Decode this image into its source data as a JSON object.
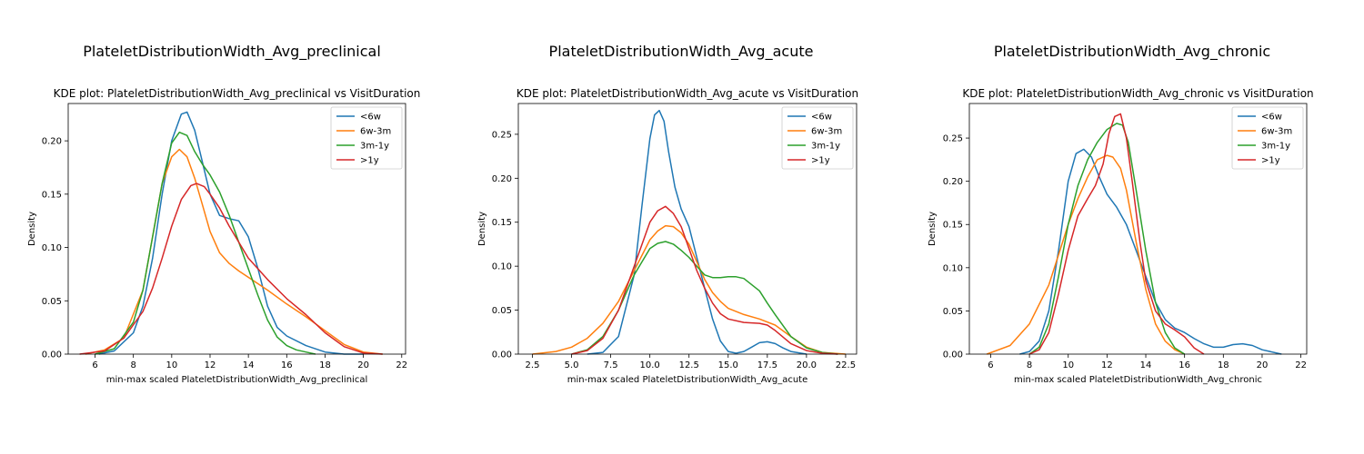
{
  "colors": {
    "lt6w": "#1f77b4",
    "6w3m": "#ff7f0e",
    "3m1y": "#2ca02c",
    "gt1y": "#d62728"
  },
  "chart_data": [
    {
      "type": "line",
      "panel_title": "PlateletDistributionWidth_Avg_preclinical",
      "title": "KDE plot:  PlateletDistributionWidth_Avg_preclinical vs VisitDuration",
      "xlabel": "min-max scaled PlateletDistributionWidth_Avg_preclinical",
      "ylabel": "Density",
      "xlim": [
        4.6,
        22.2
      ],
      "ylim": [
        0,
        0.235
      ],
      "xticks": [
        6,
        8,
        10,
        12,
        14,
        16,
        18,
        20,
        22
      ],
      "yticks": [
        0.0,
        0.05,
        0.1,
        0.15,
        0.2
      ],
      "ytick_labels": [
        "0.00",
        "0.05",
        "0.10",
        "0.15",
        "0.20"
      ],
      "legend_position": "top-right",
      "grid": false,
      "series": [
        {
          "name": "<6w",
          "color_key": "lt6w",
          "x": [
            6.2,
            7,
            8,
            8.5,
            9,
            9.5,
            10,
            10.5,
            10.8,
            11.2,
            11.6,
            12,
            12.5,
            13,
            13.5,
            14,
            14.5,
            15,
            15.5,
            16,
            17,
            18,
            19,
            20
          ],
          "y": [
            0,
            0.003,
            0.02,
            0.045,
            0.09,
            0.15,
            0.2,
            0.225,
            0.227,
            0.21,
            0.18,
            0.15,
            0.13,
            0.127,
            0.125,
            0.11,
            0.08,
            0.045,
            0.025,
            0.017,
            0.008,
            0.002,
            0,
            0
          ]
        },
        {
          "name": "6w-3m",
          "color_key": "6w3m",
          "x": [
            5.5,
            6.5,
            7.5,
            8.5,
            9,
            9.5,
            10,
            10.4,
            10.8,
            11.2,
            11.6,
            12,
            12.5,
            13,
            13.5,
            14,
            15,
            16,
            17,
            18,
            19,
            20,
            21
          ],
          "y": [
            0,
            0.004,
            0.015,
            0.06,
            0.11,
            0.16,
            0.185,
            0.192,
            0.185,
            0.165,
            0.14,
            0.115,
            0.095,
            0.085,
            0.078,
            0.072,
            0.06,
            0.047,
            0.035,
            0.022,
            0.009,
            0.002,
            0
          ]
        },
        {
          "name": "3m-1y",
          "color_key": "3m1y",
          "x": [
            6,
            7,
            8,
            8.5,
            9,
            9.5,
            10,
            10.4,
            10.8,
            11.2,
            11.6,
            12,
            12.5,
            13,
            13.5,
            14,
            14.5,
            15,
            15.5,
            16,
            16.5,
            17,
            17.5
          ],
          "y": [
            0,
            0.005,
            0.03,
            0.06,
            0.11,
            0.16,
            0.198,
            0.208,
            0.205,
            0.19,
            0.178,
            0.168,
            0.152,
            0.13,
            0.105,
            0.08,
            0.055,
            0.032,
            0.016,
            0.008,
            0.004,
            0.002,
            0
          ]
        },
        {
          "name": ">1y",
          "color_key": "gt1y",
          "x": [
            5.2,
            6.5,
            7.5,
            8.5,
            9,
            9.5,
            10,
            10.5,
            11,
            11.3,
            11.7,
            12,
            12.5,
            13,
            13.5,
            14,
            15,
            16,
            17,
            18,
            19,
            20,
            21
          ],
          "y": [
            0,
            0.003,
            0.015,
            0.04,
            0.062,
            0.09,
            0.12,
            0.145,
            0.158,
            0.16,
            0.157,
            0.15,
            0.137,
            0.12,
            0.105,
            0.09,
            0.07,
            0.052,
            0.037,
            0.02,
            0.007,
            0.001,
            0
          ]
        }
      ]
    },
    {
      "type": "line",
      "panel_title": "PlateletDistributionWidth_Avg_acute",
      "title": "KDE plot:  PlateletDistributionWidth_Avg_acute vs VisitDuration",
      "xlabel": "min-max scaled PlateletDistributionWidth_Avg_acute",
      "ylabel": "Density",
      "xlim": [
        1.6,
        23.2
      ],
      "ylim": [
        0,
        0.285
      ],
      "xticks": [
        2.5,
        5.0,
        7.5,
        10.0,
        12.5,
        15.0,
        17.5,
        20.0,
        22.5
      ],
      "xtick_labels": [
        "2.5",
        "5.0",
        "7.5",
        "10.0",
        "12.5",
        "15.0",
        "17.5",
        "20.0",
        "22.5"
      ],
      "yticks": [
        0.0,
        0.05,
        0.1,
        0.15,
        0.2,
        0.25
      ],
      "ytick_labels": [
        "0.00",
        "0.05",
        "0.10",
        "0.15",
        "0.20",
        "0.25"
      ],
      "legend_position": "top-right",
      "grid": false,
      "series": [
        {
          "name": "<6w",
          "color_key": "lt6w",
          "x": [
            6,
            7,
            8,
            9,
            9.5,
            10,
            10.3,
            10.6,
            10.9,
            11.2,
            11.6,
            12,
            12.5,
            13,
            13.5,
            14,
            14.5,
            15,
            15.5,
            16,
            16.5,
            17,
            17.5,
            18,
            18.5,
            19,
            20
          ],
          "y": [
            0,
            0.002,
            0.02,
            0.09,
            0.17,
            0.245,
            0.272,
            0.277,
            0.265,
            0.23,
            0.19,
            0.165,
            0.145,
            0.11,
            0.075,
            0.04,
            0.015,
            0.003,
            0.001,
            0.003,
            0.008,
            0.013,
            0.014,
            0.012,
            0.007,
            0.003,
            0
          ]
        },
        {
          "name": "6w-3m",
          "color_key": "6w3m",
          "x": [
            2.5,
            4,
            5,
            6,
            7,
            8,
            9,
            10,
            10.5,
            11,
            11.5,
            12,
            12.5,
            13,
            13.5,
            14,
            14.5,
            15,
            16,
            17,
            18,
            19,
            20,
            21,
            22.5
          ],
          "y": [
            0,
            0.003,
            0.008,
            0.018,
            0.035,
            0.06,
            0.095,
            0.13,
            0.14,
            0.146,
            0.145,
            0.138,
            0.125,
            0.105,
            0.085,
            0.07,
            0.06,
            0.052,
            0.045,
            0.04,
            0.033,
            0.02,
            0.008,
            0.002,
            0
          ]
        },
        {
          "name": "3m-1y",
          "color_key": "3m1y",
          "x": [
            5,
            6,
            7,
            8,
            9,
            10,
            10.5,
            11,
            11.5,
            12,
            12.5,
            13,
            13.5,
            14,
            14.5,
            15,
            15.5,
            16,
            17,
            17.5,
            18,
            19,
            20,
            21,
            22
          ],
          "y": [
            0,
            0.005,
            0.02,
            0.05,
            0.09,
            0.12,
            0.126,
            0.128,
            0.125,
            0.118,
            0.11,
            0.1,
            0.09,
            0.087,
            0.087,
            0.088,
            0.088,
            0.086,
            0.072,
            0.058,
            0.045,
            0.02,
            0.007,
            0.002,
            0
          ]
        },
        {
          "name": ">1y",
          "color_key": "gt1y",
          "x": [
            5,
            6,
            7,
            8,
            9,
            10,
            10.5,
            11,
            11.5,
            12,
            12.5,
            13,
            13.5,
            14,
            14.5,
            15,
            16,
            17,
            17.5,
            18,
            19,
            20,
            21,
            22
          ],
          "y": [
            0,
            0.004,
            0.018,
            0.05,
            0.1,
            0.15,
            0.163,
            0.168,
            0.16,
            0.145,
            0.12,
            0.095,
            0.075,
            0.058,
            0.046,
            0.04,
            0.036,
            0.035,
            0.033,
            0.027,
            0.012,
            0.004,
            0.001,
            0
          ]
        }
      ]
    },
    {
      "type": "line",
      "panel_title": "PlateletDistributionWidth_Avg_chronic",
      "title": "KDE plot:  PlateletDistributionWidth_Avg_chronic vs VisitDuration",
      "xlabel": "min-max scaled PlateletDistributionWidth_Avg_chronic",
      "ylabel": "Density",
      "xlim": [
        4.9,
        22.3
      ],
      "ylim": [
        0,
        0.29
      ],
      "xticks": [
        6,
        8,
        10,
        12,
        14,
        16,
        18,
        20,
        22
      ],
      "yticks": [
        0.0,
        0.05,
        0.1,
        0.15,
        0.2,
        0.25
      ],
      "ytick_labels": [
        "0.00",
        "0.05",
        "0.10",
        "0.15",
        "0.20",
        "0.25"
      ],
      "legend_position": "top-right",
      "grid": false,
      "series": [
        {
          "name": "<6w",
          "color_key": "lt6w",
          "x": [
            7.5,
            8,
            8.5,
            9,
            9.5,
            10,
            10.4,
            10.8,
            11.2,
            11.6,
            12,
            12.5,
            13,
            13.5,
            14,
            14.5,
            15,
            15.5,
            16,
            16.5,
            17,
            17.5,
            18,
            18.5,
            19,
            19.5,
            20,
            21
          ],
          "y": [
            0,
            0.003,
            0.015,
            0.05,
            0.12,
            0.2,
            0.232,
            0.237,
            0.228,
            0.205,
            0.185,
            0.17,
            0.15,
            0.12,
            0.09,
            0.06,
            0.04,
            0.03,
            0.025,
            0.018,
            0.012,
            0.008,
            0.008,
            0.011,
            0.012,
            0.01,
            0.005,
            0
          ]
        },
        {
          "name": "6w-3m",
          "color_key": "6w3m",
          "x": [
            5.8,
            7,
            8,
            9,
            9.5,
            10,
            10.5,
            11,
            11.5,
            12,
            12.3,
            12.7,
            13,
            13.5,
            14,
            14.5,
            15,
            15.5,
            16
          ],
          "y": [
            0,
            0.01,
            0.035,
            0.08,
            0.115,
            0.15,
            0.18,
            0.205,
            0.225,
            0.23,
            0.228,
            0.215,
            0.19,
            0.13,
            0.075,
            0.035,
            0.015,
            0.005,
            0
          ]
        },
        {
          "name": "3m-1y",
          "color_key": "3m1y",
          "x": [
            8,
            8.5,
            9,
            9.5,
            10,
            10.5,
            11,
            11.5,
            12,
            12.5,
            12.8,
            13.1,
            13.5,
            14,
            14.5,
            15,
            15.5,
            16
          ],
          "y": [
            0,
            0.008,
            0.035,
            0.09,
            0.15,
            0.195,
            0.225,
            0.245,
            0.26,
            0.267,
            0.265,
            0.245,
            0.19,
            0.12,
            0.06,
            0.025,
            0.007,
            0
          ]
        },
        {
          "name": ">1y",
          "color_key": "gt1y",
          "x": [
            8,
            8.5,
            9,
            9.5,
            10,
            10.5,
            11,
            11.4,
            11.8,
            12.1,
            12.4,
            12.7,
            13,
            13.3,
            13.7,
            14,
            14.5,
            15,
            15.5,
            16,
            16.5,
            17
          ],
          "y": [
            0,
            0.005,
            0.025,
            0.07,
            0.12,
            0.16,
            0.18,
            0.195,
            0.22,
            0.255,
            0.275,
            0.278,
            0.25,
            0.2,
            0.13,
            0.085,
            0.05,
            0.035,
            0.028,
            0.02,
            0.007,
            0
          ]
        }
      ]
    }
  ]
}
